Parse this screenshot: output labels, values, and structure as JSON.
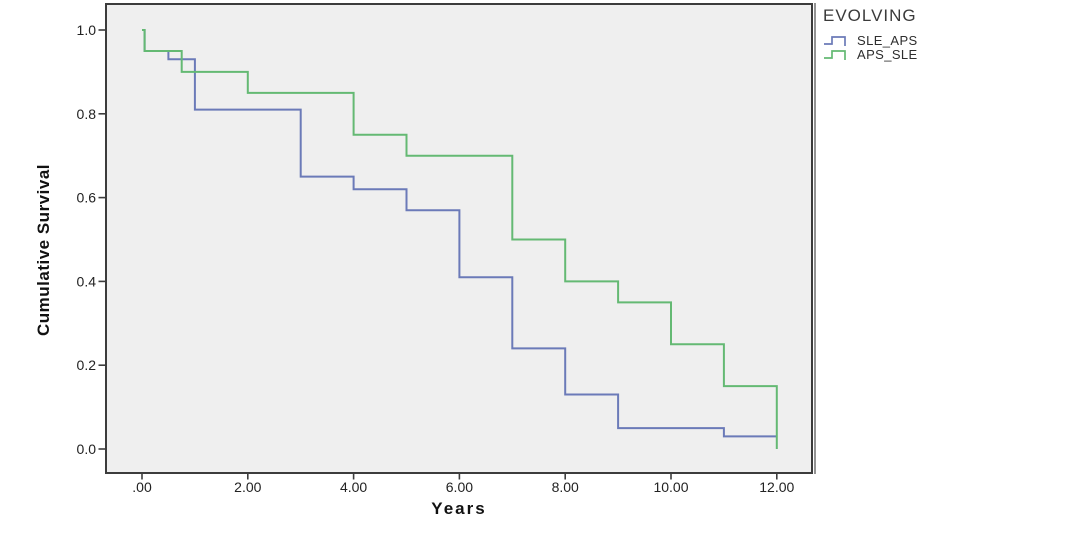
{
  "legend": {
    "title": "EVOLVING",
    "items": [
      {
        "label": "SLE_APS",
        "color": "#6b7ab8",
        "icon": "step-line-icon"
      },
      {
        "label": "APS_SLE",
        "color": "#64b973",
        "icon": "step-line-icon"
      }
    ]
  },
  "chart_data": {
    "type": "line",
    "subtype": "kaplan-meier-step",
    "title": "",
    "xlabel": "Years",
    "ylabel": "Cumulative Survival",
    "xlim": [
      -0.7,
      12.7
    ],
    "ylim": [
      -0.06,
      1.06
    ],
    "grid": false,
    "legend_position": "top-right-outside",
    "plot_background": "#efefef",
    "frame_color": "#3c3c3c",
    "frame_shadow_color": "#7a7a7a",
    "tick_label_color": "#222222",
    "xticks": {
      "values": [
        0,
        2,
        4,
        6,
        8,
        10,
        12
      ],
      "labels": [
        ".00",
        "2.00",
        "4.00",
        "6.00",
        "8.00",
        "10.00",
        "12.00"
      ]
    },
    "yticks": {
      "values": [
        0.0,
        0.2,
        0.4,
        0.6,
        0.8,
        1.0
      ],
      "labels": [
        "0.0",
        "0.2",
        "0.4",
        "0.6",
        "0.8",
        "1.0"
      ]
    },
    "series": [
      {
        "name": "SLE_APS",
        "color": "#6b7ab8",
        "end_time": 12.0,
        "steps": [
          [
            0.0,
            1.0
          ],
          [
            0.05,
            0.95
          ],
          [
            0.5,
            0.93
          ],
          [
            1.0,
            0.81
          ],
          [
            3.0,
            0.65
          ],
          [
            4.0,
            0.62
          ],
          [
            5.0,
            0.57
          ],
          [
            6.0,
            0.41
          ],
          [
            7.0,
            0.24
          ],
          [
            8.0,
            0.13
          ],
          [
            9.0,
            0.05
          ],
          [
            11.0,
            0.03
          ]
        ]
      },
      {
        "name": "APS_SLE",
        "color": "#64b973",
        "end_time": 12.0,
        "steps": [
          [
            0.0,
            1.0
          ],
          [
            0.05,
            0.95
          ],
          [
            0.75,
            0.9
          ],
          [
            2.0,
            0.85
          ],
          [
            4.0,
            0.75
          ],
          [
            5.0,
            0.7
          ],
          [
            7.0,
            0.5
          ],
          [
            8.0,
            0.4
          ],
          [
            9.0,
            0.35
          ],
          [
            10.0,
            0.25
          ],
          [
            11.0,
            0.15
          ],
          [
            12.0,
            0.0
          ]
        ]
      }
    ]
  }
}
